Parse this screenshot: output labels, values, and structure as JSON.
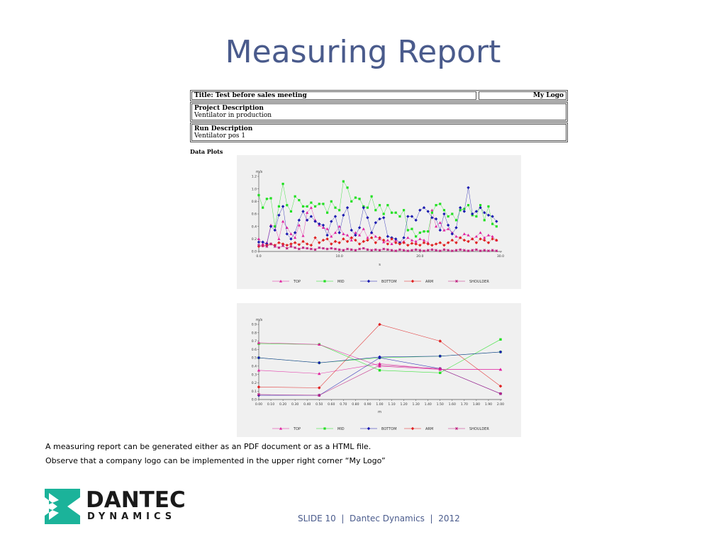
{
  "slide": {
    "title": "Measuring Report",
    "captions": [
      "A measuring report can be generated either as an PDF document or as a HTML file.",
      "Observe that a company logo can be implemented in the upper right corner “My Logo”"
    ],
    "footer": "SLIDE 10  |  Dantec Dynamics  |  2012"
  },
  "report": {
    "title": "Title: Test before sales meeting",
    "logo": "My Logo",
    "project_label": "Project Description",
    "project_value": "Ventilator in production",
    "run_label": "Run Description",
    "run_value": "Ventilator pos 1",
    "plots_label": "Data Plots"
  },
  "logo": {
    "line1": "DANTEC",
    "line2": "DYNAMICS",
    "color": "#1bb39a"
  },
  "chart_data": [
    {
      "type": "line",
      "ylabel": "m/s",
      "xlabel": "s",
      "xlim": [
        0,
        30
      ],
      "ylim": [
        0,
        1.2
      ],
      "xticks": [
        0,
        10,
        20,
        30
      ],
      "xtick_labels": [
        "0.0",
        "10.0",
        "20.0",
        "30.0"
      ],
      "yticks": [
        0,
        0.2,
        0.4,
        0.6,
        0.8,
        1.0,
        1.2
      ],
      "ytick_labels": [
        "0.0",
        "0.2",
        "0.4",
        "0.6",
        "0.8",
        "1.0",
        "1.2"
      ],
      "grid": false,
      "legend_position": "bottom",
      "x": [
        0.0,
        0.5,
        1.0,
        1.5,
        2.0,
        2.5,
        3.0,
        3.5,
        4.0,
        4.5,
        5.0,
        5.5,
        6.0,
        6.5,
        7.0,
        7.5,
        8.0,
        8.5,
        9.0,
        9.5,
        10.0,
        10.5,
        11.0,
        11.5,
        12.0,
        12.5,
        13.0,
        13.5,
        14.0,
        14.5,
        15.0,
        15.5,
        16.0,
        16.5,
        17.0,
        17.5,
        18.0,
        18.5,
        19.0,
        19.5,
        20.0,
        20.5,
        21.0,
        21.5,
        22.0,
        22.5,
        23.0,
        23.5,
        24.0,
        24.5,
        25.0,
        25.5,
        26.0,
        26.5,
        27.0,
        27.5,
        28.0,
        28.5,
        29.0,
        29.5
      ],
      "series": [
        {
          "name": "TOP",
          "marker": "triangle",
          "color": "#e020a0",
          "values": [
            0.2,
            0.12,
            0.14,
            0.42,
            0.4,
            0.2,
            0.48,
            0.38,
            0.28,
            0.22,
            0.42,
            0.25,
            0.62,
            0.7,
            0.5,
            0.42,
            0.38,
            0.36,
            0.24,
            0.3,
            0.4,
            0.28,
            0.26,
            0.18,
            0.3,
            0.26,
            0.36,
            0.22,
            0.3,
            0.24,
            0.2,
            0.15,
            0.18,
            0.12,
            0.18,
            0.14,
            0.16,
            0.22,
            0.18,
            0.16,
            0.2,
            0.18,
            0.14,
            0.66,
            0.4,
            0.46,
            0.34,
            0.36,
            0.3,
            0.24,
            0.22,
            0.28,
            0.26,
            0.2,
            0.24,
            0.3,
            0.22,
            0.26,
            0.24,
            0.18
          ]
        },
        {
          "name": "MID",
          "marker": "square",
          "color": "#22e022",
          "values": [
            0.9,
            0.7,
            0.84,
            0.85,
            0.4,
            0.72,
            1.08,
            0.74,
            0.64,
            0.88,
            0.82,
            0.72,
            0.72,
            0.78,
            0.72,
            0.76,
            0.76,
            0.62,
            0.8,
            0.7,
            0.66,
            1.12,
            1.02,
            0.8,
            0.86,
            0.84,
            0.72,
            0.7,
            0.88,
            0.66,
            0.74,
            0.6,
            0.74,
            0.62,
            0.62,
            0.56,
            0.66,
            0.34,
            0.36,
            0.24,
            0.3,
            0.32,
            0.32,
            0.62,
            0.74,
            0.76,
            0.66,
            0.56,
            0.6,
            0.5,
            0.66,
            0.68,
            0.74,
            0.58,
            0.56,
            0.74,
            0.5,
            0.72,
            0.44,
            0.4
          ]
        },
        {
          "name": "BOTTOM",
          "marker": "diamond",
          "color": "#1a1ab0",
          "values": [
            0.15,
            0.15,
            0.12,
            0.4,
            0.34,
            0.58,
            0.72,
            0.28,
            0.2,
            0.3,
            0.5,
            0.64,
            0.5,
            0.56,
            0.48,
            0.44,
            0.42,
            0.26,
            0.48,
            0.56,
            0.3,
            0.58,
            0.7,
            0.34,
            0.26,
            0.38,
            0.7,
            0.54,
            0.3,
            0.46,
            0.52,
            0.54,
            0.24,
            0.22,
            0.2,
            0.14,
            0.22,
            0.56,
            0.56,
            0.5,
            0.66,
            0.7,
            0.64,
            0.54,
            0.52,
            0.34,
            0.6,
            0.42,
            0.28,
            0.38,
            0.7,
            0.64,
            1.02,
            0.6,
            0.64,
            0.7,
            0.62,
            0.58,
            0.56,
            0.48
          ]
        },
        {
          "name": "ARM",
          "marker": "diamond",
          "color": "#e02020",
          "values": [
            0.08,
            0.09,
            0.1,
            0.12,
            0.1,
            0.14,
            0.12,
            0.1,
            0.12,
            0.14,
            0.11,
            0.16,
            0.12,
            0.1,
            0.22,
            0.14,
            0.18,
            0.2,
            0.12,
            0.16,
            0.14,
            0.2,
            0.16,
            0.22,
            0.18,
            0.12,
            0.16,
            0.18,
            0.22,
            0.14,
            0.22,
            0.18,
            0.12,
            0.2,
            0.14,
            0.12,
            0.14,
            0.1,
            0.13,
            0.12,
            0.1,
            0.14,
            0.12,
            0.1,
            0.12,
            0.14,
            0.1,
            0.14,
            0.18,
            0.14,
            0.22,
            0.18,
            0.16,
            0.2,
            0.14,
            0.2,
            0.18,
            0.14,
            0.2,
            0.18
          ]
        },
        {
          "name": "SHOULDER",
          "marker": "star",
          "color": "#c02080",
          "values": [
            0.1,
            0.09,
            0.08,
            0.12,
            0.08,
            0.06,
            0.09,
            0.05,
            0.08,
            0.06,
            0.04,
            0.06,
            0.05,
            0.04,
            0.03,
            0.06,
            0.05,
            0.04,
            0.05,
            0.04,
            0.03,
            0.02,
            0.04,
            0.03,
            0.02,
            0.04,
            0.05,
            0.03,
            0.02,
            0.03,
            0.02,
            0.04,
            0.03,
            0.02,
            0.01,
            0.03,
            0.02,
            0.01,
            0.02,
            0.03,
            0.02,
            0.01,
            0.02,
            0.03,
            0.02,
            0.01,
            0.03,
            0.02,
            0.01,
            0.02,
            0.03,
            0.02,
            0.01,
            0.02,
            0.03,
            0.01,
            0.02,
            0.01,
            0.02,
            0.01
          ]
        }
      ]
    },
    {
      "type": "line",
      "ylabel": "m/s",
      "xlabel": "m",
      "xlim": [
        0,
        2
      ],
      "ylim": [
        0,
        0.9
      ],
      "xticks": [
        0,
        0.1,
        0.2,
        0.3,
        0.4,
        0.5,
        0.6,
        0.7,
        0.8,
        0.9,
        1.0,
        1.1,
        1.2,
        1.3,
        1.4,
        1.5,
        1.6,
        1.7,
        1.8,
        1.9,
        2.0
      ],
      "xtick_labels": [
        "0.00",
        "0.10",
        "0.20",
        "0.30",
        "0.40",
        "0.50",
        "0.60",
        "0.70",
        "0.80",
        "0.90",
        "1.00",
        "1.10",
        "1.20",
        "1.30",
        "1.40",
        "1.50",
        "1.60",
        "1.70",
        "1.80",
        "1.90",
        "2.00"
      ],
      "yticks": [
        0,
        0.1,
        0.2,
        0.3,
        0.4,
        0.5,
        0.6,
        0.7,
        0.8,
        0.9
      ],
      "ytick_labels": [
        "0.0",
        "0.1",
        "0.2",
        "0.3",
        "0.4",
        "0.5",
        "0.6",
        "0.7",
        "0.8",
        "0.9"
      ],
      "grid": false,
      "legend_position": "bottom",
      "x": [
        0.0,
        0.5,
        1.0,
        1.5,
        2.0
      ],
      "series": [
        {
          "name": "TOP",
          "marker": "triangle",
          "color": "#e020a0",
          "values": [
            0.35,
            0.31,
            0.43,
            0.36,
            0.36
          ]
        },
        {
          "name": "MID",
          "marker": "square",
          "color": "#22e022",
          "values": [
            0.5,
            0.44,
            0.5,
            0.52,
            0.57
          ]
        },
        {
          "name": "BOTTOM",
          "marker": "diamond",
          "color": "#1a1ab0",
          "values": [
            0.05,
            0.05,
            0.5,
            0.37,
            0.07
          ]
        },
        {
          "name": "ARM",
          "marker": "diamond",
          "color": "#e02020",
          "values": [
            0.15,
            0.14,
            0.9,
            0.7,
            0.16
          ]
        },
        {
          "name": "SHOULDER",
          "marker": "star",
          "color": "#c02080",
          "values": [
            0.06,
            0.05,
            0.41,
            0.37,
            0.07
          ]
        },
        {
          "name": "",
          "marker": "square",
          "color": "#22e022",
          "values": [
            0.67,
            0.66,
            0.35,
            0.32,
            0.72
          ]
        },
        {
          "name": "",
          "marker": "diamond",
          "color": "#1a1ab0",
          "values": [
            0.5,
            0.44,
            0.51,
            0.52,
            0.57
          ]
        },
        {
          "name": "",
          "marker": "triangle",
          "color": "#e020a0",
          "values": [
            0.68,
            0.66,
            0.4,
            0.36,
            0.36
          ]
        }
      ]
    }
  ]
}
